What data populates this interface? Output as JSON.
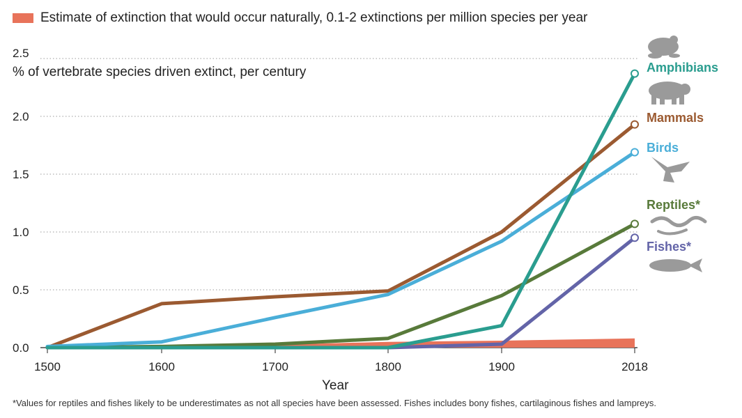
{
  "legend": {
    "natural_rate_label": "Estimate of extinction that would occur naturally, 0.1-2 extinctions per million species per year",
    "natural_rate_color": "#e8735a"
  },
  "axes": {
    "ylabel": "% of vertebrate species driven extinct, per century",
    "xlabel": "Year"
  },
  "footnote": "*Values for reptiles and fishes likely to be underestimates as not all species have been assessed. Fishes includes bony fishes, cartilaginous fishes and lampreys.",
  "chart_data": {
    "type": "line",
    "x": [
      1500,
      1600,
      1700,
      1800,
      1900,
      2018
    ],
    "x_ticks": [
      "1500",
      "1600",
      "1700",
      "1800",
      "1900",
      "2018"
    ],
    "y_ticks": [
      "0.0",
      "0.5",
      "1.0",
      "1.5",
      "2.0",
      "2.5"
    ],
    "ylim": [
      0,
      2.5
    ],
    "grid": "horizontal dotted",
    "series": [
      {
        "name": "Amphibians",
        "color": "#2a9d8f",
        "icon": "frog-icon",
        "values": [
          0.0,
          0.0,
          0.0,
          0.0,
          0.19,
          2.37
        ]
      },
      {
        "name": "Mammals",
        "color": "#9b5a31",
        "icon": "bear-icon",
        "values": [
          0.0,
          0.38,
          0.44,
          0.49,
          1.0,
          1.93
        ]
      },
      {
        "name": "Birds",
        "color": "#4aaed8",
        "icon": "eagle-icon",
        "values": [
          0.01,
          0.05,
          0.26,
          0.46,
          0.92,
          1.69
        ]
      },
      {
        "name": "Reptiles*",
        "color": "#587a3a",
        "icon": "snake-icon",
        "values": [
          0.0,
          0.01,
          0.03,
          0.08,
          0.45,
          1.07
        ]
      },
      {
        "name": "Fishes*",
        "color": "#6364a8",
        "icon": "fish-icon",
        "values": [
          null,
          null,
          null,
          0.0,
          0.03,
          0.95
        ]
      }
    ],
    "natural_rate_band": {
      "label": "Estimate of extinction that would occur naturally, 0.1-2 extinctions per million species per year",
      "upper": [
        0.01,
        0.015,
        0.025,
        0.05,
        0.06,
        0.08
      ]
    }
  }
}
